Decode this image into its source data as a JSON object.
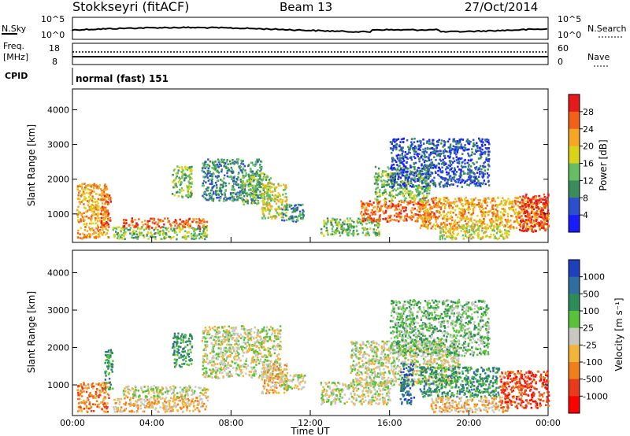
{
  "header": {
    "station": "Stokkseyri (fitACF)",
    "beam": "Beam 13",
    "date": "27/Oct/2014"
  },
  "top_panels": {
    "nsky_label": "N.Sky",
    "nsky_hi": "10^5",
    "nsky_lo": "10^0",
    "nsearch_label": "N.Search",
    "nsearch_hi": "10^5",
    "nsearch_lo": "10^0",
    "freq_label_1": "Freq.",
    "freq_label_2": "[MHz]",
    "freq_ticks_left": [
      "18",
      "8"
    ],
    "nave_label": "Nave",
    "nave_ticks_right": [
      "60",
      "0"
    ],
    "cpid_label": "CPID",
    "cpid_value": "normal (fast) 151"
  },
  "power_colorbar": {
    "label": "Power [dB]",
    "ticks": [
      "28",
      "24",
      "20",
      "16",
      "12",
      "8",
      "4"
    ],
    "colors": [
      "#e41a1c",
      "#f0621a",
      "#f5a623",
      "#d9d419",
      "#66bd63",
      "#3a8d5a",
      "#2b4fcf",
      "#1a1aff"
    ]
  },
  "velocity_colorbar": {
    "label": "Velocity [m s⁻¹]",
    "ticks": [
      "1000",
      "500",
      "100",
      "25",
      "-25",
      "-100",
      "-500",
      "-1000"
    ],
    "colors": [
      "#1f3fbf",
      "#2f6e9e",
      "#2d8c5a",
      "#59c23a",
      "#c8c8c0",
      "#f2b43a",
      "#f07e1a",
      "#e83a1c",
      "#ff0000"
    ]
  },
  "chart_data": {
    "type": "heatmap",
    "xlabel": "Time UT",
    "x_ticks": [
      "00:00",
      "04:00",
      "08:00",
      "12:00",
      "16:00",
      "20:00",
      "00:00"
    ],
    "xlim_hours": [
      0,
      24
    ],
    "ylabel": "Slant Range [km]",
    "y_ticks": [
      1000,
      2000,
      3000,
      4000
    ],
    "ylim_km": [
      180,
      4600
    ],
    "panels": [
      {
        "name": "power",
        "blobs": [
          {
            "t0": 0.2,
            "t1": 1.8,
            "r0": 300,
            "r1": 1900,
            "level": 5
          },
          {
            "t0": 1.4,
            "t1": 1.9,
            "r0": 700,
            "r1": 1600,
            "level": 6
          },
          {
            "t0": 2.5,
            "t1": 6.8,
            "r0": 600,
            "r1": 900,
            "level": 6
          },
          {
            "t0": 2.0,
            "t1": 6.8,
            "r0": 300,
            "r1": 650,
            "level": 3
          },
          {
            "t0": 5.0,
            "t1": 6.0,
            "r0": 1500,
            "r1": 2400,
            "level": 3
          },
          {
            "t0": 6.5,
            "t1": 9.5,
            "r0": 1400,
            "r1": 2600,
            "level": 2
          },
          {
            "t0": 8.5,
            "t1": 10.0,
            "r0": 1300,
            "r1": 2200,
            "level": 3
          },
          {
            "t0": 9.5,
            "t1": 10.8,
            "r0": 900,
            "r1": 1900,
            "level": 4
          },
          {
            "t0": 10.5,
            "t1": 11.7,
            "r0": 800,
            "r1": 1300,
            "level": 2
          },
          {
            "t0": 12.5,
            "t1": 15.5,
            "r0": 400,
            "r1": 900,
            "level": 3
          },
          {
            "t0": 14.5,
            "t1": 18.5,
            "r0": 800,
            "r1": 1400,
            "level": 6
          },
          {
            "t0": 15.2,
            "t1": 18.0,
            "r0": 1400,
            "r1": 2400,
            "level": 3
          },
          {
            "t0": 17.5,
            "t1": 24.0,
            "r0": 600,
            "r1": 1500,
            "level": 5
          },
          {
            "t0": 18.5,
            "t1": 22.0,
            "r0": 300,
            "r1": 700,
            "level": 4
          },
          {
            "t0": 22.5,
            "t1": 24.0,
            "r0": 500,
            "r1": 1600,
            "level": 7
          },
          {
            "t0": 16.0,
            "t1": 21.0,
            "r0": 1800,
            "r1": 3200,
            "level": 1
          }
        ]
      },
      {
        "name": "velocity",
        "blobs": [
          {
            "t0": 0.2,
            "t1": 1.8,
            "r0": 300,
            "r1": 1100,
            "level": 2
          },
          {
            "t0": 1.6,
            "t1": 2.0,
            "r0": 900,
            "r1": 2000,
            "level": 6
          },
          {
            "t0": 2.0,
            "t1": 6.8,
            "r0": 300,
            "r1": 700,
            "level": 3
          },
          {
            "t0": 2.5,
            "t1": 6.8,
            "r0": 700,
            "r1": 1000,
            "level": 4
          },
          {
            "t0": 5.0,
            "t1": 6.0,
            "r0": 1500,
            "r1": 2400,
            "level": 6
          },
          {
            "t0": 6.5,
            "t1": 10.5,
            "r0": 1200,
            "r1": 2600,
            "level": 4
          },
          {
            "t0": 9.5,
            "t1": 10.8,
            "r0": 800,
            "r1": 1600,
            "level": 3
          },
          {
            "t0": 10.5,
            "t1": 11.7,
            "r0": 900,
            "r1": 1300,
            "level": 4
          },
          {
            "t0": 12.5,
            "t1": 16.0,
            "r0": 500,
            "r1": 1100,
            "level": 4
          },
          {
            "t0": 14.0,
            "t1": 19.5,
            "r0": 1000,
            "r1": 2200,
            "level": 4
          },
          {
            "t0": 16.5,
            "t1": 17.2,
            "r0": 500,
            "r1": 1600,
            "level": 7
          },
          {
            "t0": 17.5,
            "t1": 21.5,
            "r0": 700,
            "r1": 1500,
            "level": 6
          },
          {
            "t0": 18.0,
            "t1": 22.0,
            "r0": 300,
            "r1": 700,
            "level": 3
          },
          {
            "t0": 21.5,
            "t1": 24.0,
            "r0": 400,
            "r1": 1400,
            "level": 1
          },
          {
            "t0": 16.0,
            "t1": 21.0,
            "r0": 1800,
            "r1": 3300,
            "level": 5
          }
        ]
      }
    ],
    "grid": false
  }
}
